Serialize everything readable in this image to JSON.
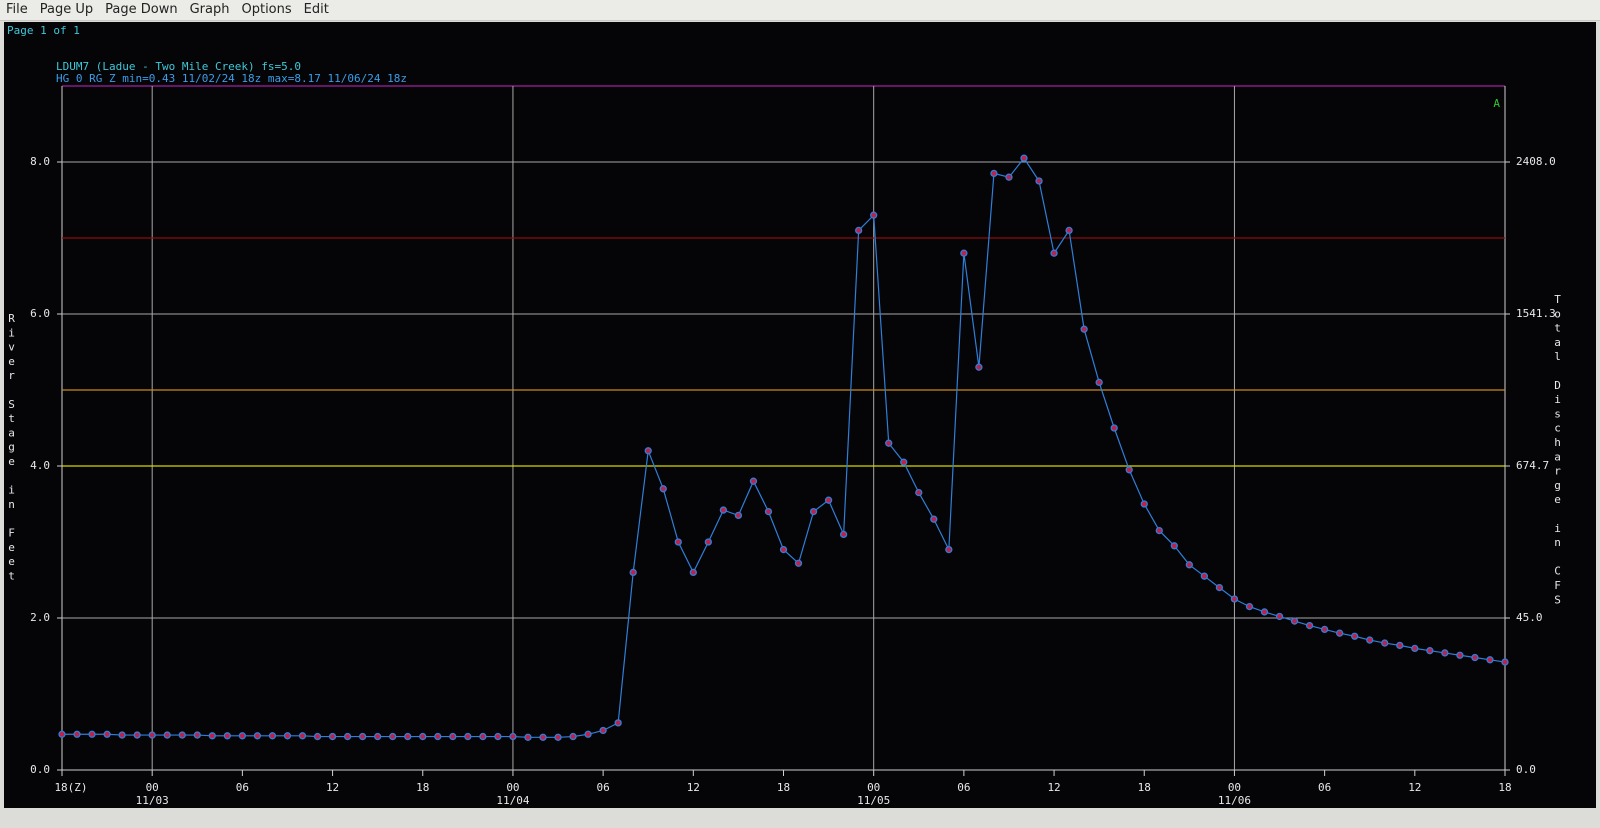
{
  "menu": [
    "File",
    "Page Up",
    "Page Down",
    "Graph",
    "Options",
    "Edit"
  ],
  "page_label": "Page 1 of 1",
  "chart_data": {
    "type": "line",
    "title": "LDUM7 (Ladue - Two Mile Creek) fs=5.0",
    "subtitle": "HG 0 RG Z min=0.43 11/02/24 18z max=8.17 11/06/24 18z",
    "flag": "A",
    "ylabel": "River Stage in Feet",
    "y2label": "Total Discharge in CFS",
    "color": "#2f7fd8",
    "marker_color": "#c0204a",
    "grid": true,
    "ylim": [
      0,
      9
    ],
    "yticks": [
      {
        "value": 0,
        "label": "0.0"
      },
      {
        "value": 2,
        "label": "2.0"
      },
      {
        "value": 4,
        "label": "4.0"
      },
      {
        "value": 6,
        "label": "6.0"
      },
      {
        "value": 8,
        "label": "8.0"
      }
    ],
    "y2ticks": [
      {
        "value": 0,
        "label": "0.0"
      },
      {
        "value": 45,
        "label": "45.0"
      },
      674.7,
      1541.3,
      {
        "value": 2408,
        "label": "2408.0"
      }
    ],
    "thresholds": [
      {
        "value": 7,
        "color": "#8b0c0c"
      },
      {
        "value": 5,
        "color": "#c98a1a"
      },
      {
        "value": 4,
        "color": "#d8d800"
      }
    ],
    "xlim": [
      "2024-11-02T18:00Z",
      "2024-11-06T18:00Z"
    ],
    "xticks": [
      {
        "value": "2024-11-02T18:00Z",
        "label": "18(Z)"
      },
      {
        "value": "2024-11-03T00:00Z",
        "label": "00"
      },
      {
        "value": "2024-11-03T06:00Z",
        "label": "06"
      },
      {
        "value": "2024-11-03T12:00Z",
        "label": "12"
      },
      {
        "value": "2024-11-03T18:00Z",
        "label": "18"
      },
      {
        "value": "2024-11-04T00:00Z",
        "label": "00"
      },
      {
        "value": "2024-11-04T06:00Z",
        "label": "06"
      },
      {
        "value": "2024-11-04T12:00Z",
        "label": "12"
      },
      {
        "value": "2024-11-04T18:00Z",
        "label": "18"
      },
      {
        "value": "2024-11-05T00:00Z",
        "label": "00"
      },
      {
        "value": "2024-11-05T06:00Z",
        "label": "06"
      },
      {
        "value": "2024-11-05T12:00Z",
        "label": "12"
      },
      {
        "value": "2024-11-05T18:00Z",
        "label": "18"
      },
      {
        "value": "2024-11-06T00:00Z",
        "label": "00"
      },
      {
        "value": "2024-11-06T06:00Z",
        "label": "06"
      },
      {
        "value": "2024-11-06T12:00Z",
        "label": "12"
      },
      {
        "value": "2024-11-06T18:00Z",
        "label": "18"
      }
    ],
    "xdates": [
      {
        "value": "2024-11-03T00:00Z",
        "label": "11/03"
      },
      {
        "value": "2024-11-04T00:00Z",
        "label": "11/04"
      },
      {
        "value": "2024-11-05T00:00Z",
        "label": "11/05"
      },
      {
        "value": "2024-11-06T00:00Z",
        "label": "11/06"
      }
    ],
    "x": [
      "2024-11-02T18:00Z",
      "2024-11-02T19:00Z",
      "2024-11-02T20:00Z",
      "2024-11-02T21:00Z",
      "2024-11-02T22:00Z",
      "2024-11-02T23:00Z",
      "2024-11-03T00:00Z",
      "2024-11-03T01:00Z",
      "2024-11-03T02:00Z",
      "2024-11-03T03:00Z",
      "2024-11-03T04:00Z",
      "2024-11-03T05:00Z",
      "2024-11-03T06:00Z",
      "2024-11-03T07:00Z",
      "2024-11-03T08:00Z",
      "2024-11-03T09:00Z",
      "2024-11-03T10:00Z",
      "2024-11-03T11:00Z",
      "2024-11-03T12:00Z",
      "2024-11-03T13:00Z",
      "2024-11-03T14:00Z",
      "2024-11-03T15:00Z",
      "2024-11-03T16:00Z",
      "2024-11-03T17:00Z",
      "2024-11-03T18:00Z",
      "2024-11-03T19:00Z",
      "2024-11-03T20:00Z",
      "2024-11-03T21:00Z",
      "2024-11-03T22:00Z",
      "2024-11-03T23:00Z",
      "2024-11-04T00:00Z",
      "2024-11-04T01:00Z",
      "2024-11-04T02:00Z",
      "2024-11-04T03:00Z",
      "2024-11-04T04:00Z",
      "2024-11-04T05:00Z",
      "2024-11-04T06:00Z",
      "2024-11-04T07:00Z",
      "2024-11-04T08:00Z",
      "2024-11-04T09:00Z",
      "2024-11-04T10:00Z",
      "2024-11-04T11:00Z",
      "2024-11-04T12:00Z",
      "2024-11-04T13:00Z",
      "2024-11-04T14:00Z",
      "2024-11-04T15:00Z",
      "2024-11-04T16:00Z",
      "2024-11-04T17:00Z",
      "2024-11-04T18:00Z",
      "2024-11-04T19:00Z",
      "2024-11-04T20:00Z",
      "2024-11-04T21:00Z",
      "2024-11-04T22:00Z",
      "2024-11-04T23:00Z",
      "2024-11-05T00:00Z",
      "2024-11-05T01:00Z",
      "2024-11-05T02:00Z",
      "2024-11-05T03:00Z",
      "2024-11-05T04:00Z",
      "2024-11-05T05:00Z",
      "2024-11-05T06:00Z",
      "2024-11-05T07:00Z",
      "2024-11-05T08:00Z",
      "2024-11-05T09:00Z",
      "2024-11-05T10:00Z",
      "2024-11-05T11:00Z",
      "2024-11-05T12:00Z",
      "2024-11-05T13:00Z",
      "2024-11-05T14:00Z",
      "2024-11-05T15:00Z",
      "2024-11-05T16:00Z",
      "2024-11-05T17:00Z",
      "2024-11-05T18:00Z",
      "2024-11-05T19:00Z",
      "2024-11-05T20:00Z",
      "2024-11-05T21:00Z",
      "2024-11-05T22:00Z",
      "2024-11-05T23:00Z",
      "2024-11-06T00:00Z",
      "2024-11-06T01:00Z",
      "2024-11-06T02:00Z",
      "2024-11-06T03:00Z",
      "2024-11-06T04:00Z",
      "2024-11-06T05:00Z",
      "2024-11-06T06:00Z",
      "2024-11-06T07:00Z",
      "2024-11-06T08:00Z",
      "2024-11-06T09:00Z",
      "2024-11-06T10:00Z",
      "2024-11-06T11:00Z",
      "2024-11-06T12:00Z",
      "2024-11-06T13:00Z",
      "2024-11-06T14:00Z",
      "2024-11-06T15:00Z",
      "2024-11-06T16:00Z",
      "2024-11-06T17:00Z",
      "2024-11-06T18:00Z"
    ],
    "values": [
      0.47,
      0.47,
      0.47,
      0.47,
      0.46,
      0.46,
      0.46,
      0.46,
      0.46,
      0.46,
      0.45,
      0.45,
      0.45,
      0.45,
      0.45,
      0.45,
      0.45,
      0.44,
      0.44,
      0.44,
      0.44,
      0.44,
      0.44,
      0.44,
      0.44,
      0.44,
      0.44,
      0.44,
      0.44,
      0.44,
      0.44,
      0.43,
      0.43,
      0.43,
      0.44,
      0.47,
      0.52,
      0.62,
      2.6,
      4.2,
      3.7,
      3.0,
      2.6,
      3.0,
      3.42,
      3.35,
      3.8,
      3.4,
      2.9,
      2.72,
      3.4,
      3.55,
      3.1,
      7.1,
      7.3,
      4.3,
      4.05,
      3.65,
      3.3,
      2.9,
      6.8,
      5.3,
      7.85,
      7.8,
      8.05,
      7.75,
      6.8,
      7.1,
      5.8,
      5.1,
      4.5,
      3.95,
      3.5,
      3.15,
      2.95,
      2.7,
      2.55,
      2.4,
      2.25,
      2.15,
      2.08,
      2.02,
      1.96,
      1.9,
      1.85,
      1.8,
      1.76,
      1.71,
      1.67,
      1.64,
      1.6,
      1.57,
      1.54,
      1.51,
      1.48,
      1.45,
      1.42
    ]
  }
}
